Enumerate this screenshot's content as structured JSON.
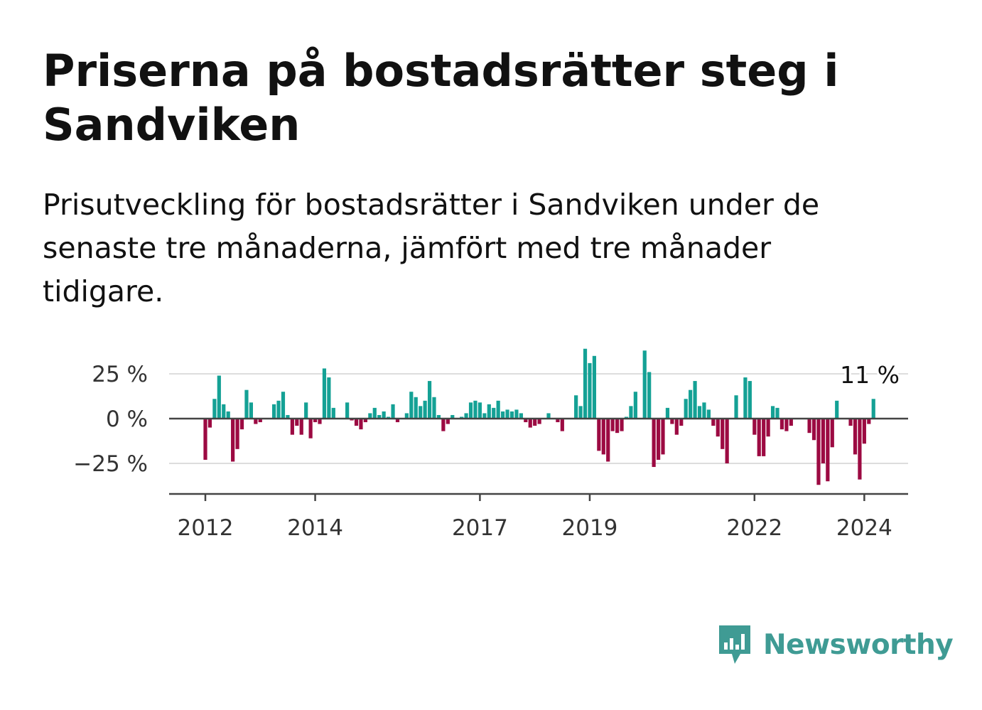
{
  "title": "Priserna på bostadsrätter steg i Sandviken",
  "subtitle": "Prisutveckling för bostadsrätter i Sandviken under de senaste tre månaderna, jämfört med tre månader tidigare.",
  "brand": {
    "name": "Newsworthy",
    "icon": "newsworthy-logo-icon",
    "color": "#3f9b94"
  },
  "chart_data": {
    "type": "bar",
    "x_start": "2011-12",
    "x_frequency": "monthly",
    "ylim": [
      -42,
      40
    ],
    "yticks": [
      25,
      0,
      -25
    ],
    "ytick_labels": [
      "25 %",
      "0 %",
      "−25 %"
    ],
    "xtick_labels": [
      "2012",
      "2014",
      "2017",
      "2019",
      "2022",
      "2024"
    ],
    "xtick_positions": [
      "2011-12",
      "2013-12",
      "2016-12",
      "2018-12",
      "2021-12",
      "2023-12"
    ],
    "colors": {
      "positive": "#14a195",
      "negative": "#9c0a42",
      "grid": "#dddddd",
      "axis": "#444444"
    },
    "annotation": {
      "text": "11 %",
      "x": "2024-03"
    },
    "values": [
      -23,
      -5,
      11,
      24,
      8,
      4,
      -24,
      -17,
      -6,
      16,
      9,
      -3,
      -2,
      0,
      0,
      8,
      10,
      15,
      2,
      -9,
      -4,
      -9,
      9,
      -11,
      -2,
      -3,
      28,
      23,
      6,
      0,
      0,
      9,
      -1,
      -4,
      -6,
      -2,
      3,
      6,
      2,
      4,
      1,
      8,
      -2,
      0,
      3,
      15,
      12,
      7,
      10,
      21,
      12,
      2,
      -7,
      -3,
      2,
      0,
      1,
      3,
      9,
      10,
      9,
      3,
      8,
      6,
      10,
      4,
      5,
      4,
      5,
      3,
      -2,
      -5,
      -4,
      -3,
      0,
      3,
      0,
      -2,
      -7,
      0,
      0,
      13,
      7,
      39,
      31,
      35,
      -18,
      -20,
      -24,
      -7,
      -8,
      -7,
      1,
      7,
      15,
      0,
      38,
      26,
      -27,
      -23,
      -20,
      6,
      -3,
      -9,
      -4,
      11,
      16,
      21,
      7,
      9,
      5,
      -4,
      -10,
      -17,
      -25,
      0,
      13,
      0,
      23,
      21,
      -9,
      -21,
      -21,
      -10,
      7,
      6,
      -6,
      -7,
      -4,
      0,
      0,
      0,
      -8,
      -12,
      -37,
      -25,
      -35,
      -16,
      10,
      0,
      0,
      -4,
      -20,
      -34,
      -14,
      -3,
      11
    ]
  }
}
